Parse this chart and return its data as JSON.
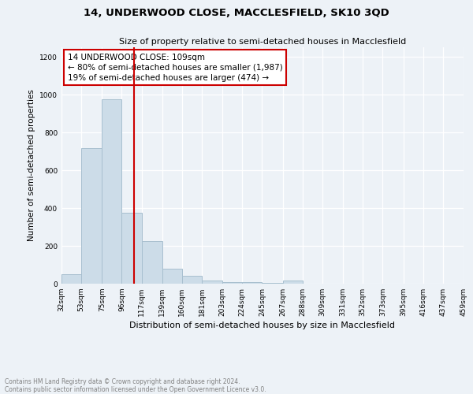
{
  "title": "14, UNDERWOOD CLOSE, MACCLESFIELD, SK10 3QD",
  "subtitle": "Size of property relative to semi-detached houses in Macclesfield",
  "xlabel": "Distribution of semi-detached houses by size in Macclesfield",
  "ylabel": "Number of semi-detached properties",
  "footnote1": "Contains HM Land Registry data © Crown copyright and database right 2024.",
  "footnote2": "Contains public sector information licensed under the Open Government Licence v3.0.",
  "bins": [
    32,
    53,
    75,
    96,
    117,
    139,
    160,
    181,
    203,
    224,
    245,
    267,
    288,
    309,
    331,
    352,
    373,
    395,
    416,
    437,
    459
  ],
  "bin_labels": [
    "32sqm",
    "53sqm",
    "75sqm",
    "96sqm",
    "117sqm",
    "139sqm",
    "160sqm",
    "181sqm",
    "203sqm",
    "224sqm",
    "245sqm",
    "267sqm",
    "288sqm",
    "309sqm",
    "331sqm",
    "352sqm",
    "373sqm",
    "395sqm",
    "416sqm",
    "437sqm",
    "459sqm"
  ],
  "values": [
    50,
    715,
    975,
    375,
    225,
    80,
    40,
    15,
    10,
    8,
    5,
    15,
    0,
    0,
    0,
    0,
    0,
    0,
    0,
    0
  ],
  "bar_color": "#ccdce8",
  "bar_edge_color": "#a8bfcf",
  "property_size": 109,
  "red_line_color": "#cc0000",
  "annotation_title": "14 UNDERWOOD CLOSE: 109sqm",
  "annotation_line1": "← 80% of semi-detached houses are smaller (1,987)",
  "annotation_line2": "19% of semi-detached houses are larger (474) →",
  "annotation_box_facecolor": "#ffffff",
  "annotation_box_edgecolor": "#cc0000",
  "ylim": [
    0,
    1250
  ],
  "yticks": [
    0,
    200,
    400,
    600,
    800,
    1000,
    1200
  ],
  "background_color": "#edf2f7",
  "grid_color": "#ffffff",
  "title_fontsize": 9.5,
  "subtitle_fontsize": 8,
  "ylabel_fontsize": 7.5,
  "xlabel_fontsize": 8,
  "tick_fontsize": 6.5,
  "annot_fontsize": 7.5,
  "footnote_fontsize": 5.5
}
